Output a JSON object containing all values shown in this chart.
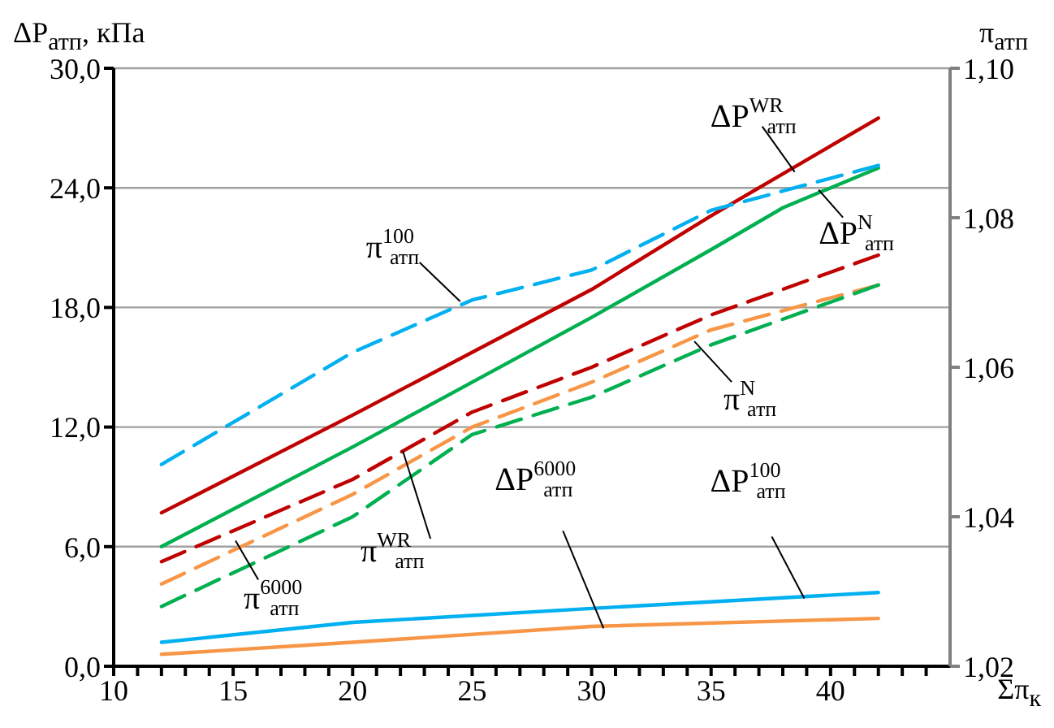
{
  "chart_data": {
    "type": "line",
    "xlabel": "Σπ$_{к}$",
    "ylabel": "ΔP$_{атп}$, кПа",
    "y2label": "π$_{атп}$",
    "xlim": [
      10,
      45
    ],
    "xticks": [
      10,
      {
        "value": 11,
        "label": null
      },
      {
        "value": 12,
        "label": null
      },
      {
        "value": 13,
        "label": null
      },
      {
        "value": 14,
        "label": null
      },
      15,
      {
        "value": 16,
        "label": null
      },
      {
        "value": 17,
        "label": null
      },
      {
        "value": 18,
        "label": null
      },
      {
        "value": 19,
        "label": null
      },
      20,
      {
        "value": 21,
        "label": null
      },
      {
        "value": 22,
        "label": null
      },
      {
        "value": 23,
        "label": null
      },
      {
        "value": 24,
        "label": null
      },
      25,
      {
        "value": 26,
        "label": null
      },
      {
        "value": 27,
        "label": null
      },
      {
        "value": 28,
        "label": null
      },
      {
        "value": 29,
        "label": null
      },
      30,
      {
        "value": 31,
        "label": null
      },
      {
        "value": 32,
        "label": null
      },
      {
        "value": 33,
        "label": null
      },
      {
        "value": 34,
        "label": null
      },
      35,
      {
        "value": 36,
        "label": null
      },
      {
        "value": 37,
        "label": null
      },
      {
        "value": 38,
        "label": null
      },
      {
        "value": 39,
        "label": null
      },
      40,
      {
        "value": 41,
        "label": null
      },
      {
        "value": 42,
        "label": null
      },
      {
        "value": 43,
        "label": null
      },
      {
        "value": 44,
        "label": null
      }
    ],
    "ylim": [
      0,
      30
    ],
    "yticks": [
      {
        "value": 0,
        "label": "0,0"
      },
      {
        "value": 6,
        "label": "6,0"
      },
      {
        "value": 12,
        "label": "12,0"
      },
      {
        "value": 18,
        "label": "18,0"
      },
      {
        "value": 24,
        "label": "24,0"
      },
      {
        "value": 30,
        "label": "30,0"
      }
    ],
    "y2lim": [
      1.02,
      1.1
    ],
    "y2ticks": [
      {
        "value": 1.02,
        "label": "1,02"
      },
      {
        "value": 1.04,
        "label": "1,04"
      },
      {
        "value": 1.06,
        "label": "1,06"
      },
      {
        "value": 1.08,
        "label": "1,08"
      },
      {
        "value": 1.1,
        "label": "1,10"
      }
    ],
    "grid": true,
    "legend": false,
    "marker": "none",
    "series": [
      {
        "color": "#c00000",
        "line_style": "solid",
        "x": [
          12,
          20,
          30,
          35,
          40,
          42
        ],
        "values": [
          7.7,
          12.6,
          18.9,
          22.6,
          26.1,
          27.5
        ]
      },
      {
        "color": "#00b050",
        "line_style": "solid",
        "x": [
          12,
          20,
          30,
          35,
          38,
          42
        ],
        "values": [
          6.0,
          11.0,
          17.5,
          20.9,
          23.0,
          25.0
        ]
      },
      {
        "color": "#00b0f0",
        "line_style": "solid",
        "x": [
          12,
          20,
          30,
          42
        ],
        "values": [
          1.2,
          2.2,
          2.9,
          3.7
        ]
      },
      {
        "color": "#f79646",
        "line_style": "solid",
        "x": [
          12,
          20,
          30,
          42
        ],
        "values": [
          0.6,
          1.2,
          2.0,
          2.4
        ]
      },
      {
        "color": "#00b0f0",
        "line_style": "dashed",
        "axis": "y2",
        "x": [
          12,
          20,
          25,
          30,
          35,
          42
        ],
        "values": [
          1.047,
          1.062,
          1.069,
          1.073,
          1.081,
          1.087
        ]
      },
      {
        "color": "#c00000",
        "line_style": "dashed",
        "axis": "y2",
        "x": [
          12,
          20,
          25,
          30,
          35,
          42
        ],
        "values": [
          1.034,
          1.045,
          1.054,
          1.06,
          1.067,
          1.075
        ]
      },
      {
        "color": "#f79646",
        "line_style": "dashed",
        "axis": "y2",
        "x": [
          12,
          20,
          25,
          30,
          35,
          42
        ],
        "values": [
          1.031,
          1.043,
          1.052,
          1.058,
          1.065,
          1.071
        ]
      },
      {
        "color": "#00b050",
        "line_style": "dashed",
        "axis": "y2",
        "x": [
          12,
          20,
          25,
          30,
          35,
          42
        ],
        "values": [
          1.028,
          1.04,
          1.051,
          1.056,
          1.063,
          1.071
        ]
      }
    ],
    "annotations": [
      {
        "text": "ΔP$^{WR}$$_{атп}$",
        "x": 38.5,
        "y": 24.8
      },
      {
        "text": "ΔP$^{N}$$_{атп}$",
        "x": 39.5,
        "y": 23.9
      },
      {
        "text": "π$^{100}$$_{атп}$",
        "x": 24.5,
        "y": 18.3
      },
      {
        "text": "π$^{WR}$$_{атп}$",
        "x": 22.1,
        "y": 10.8
      },
      {
        "text": "π$^{6000}$$_{атп}$",
        "x": 15.1,
        "y": 6.3
      },
      {
        "text": "π$^{N}$$_{атп}$",
        "x": 34.3,
        "y": 16.3
      },
      {
        "text": "ΔP$^{6000}$$_{атп}$",
        "x": 30.5,
        "y": 1.9
      },
      {
        "text": "ΔP$^{100}$$_{атп}$",
        "x": 38.9,
        "y": 3.4
      }
    ]
  }
}
